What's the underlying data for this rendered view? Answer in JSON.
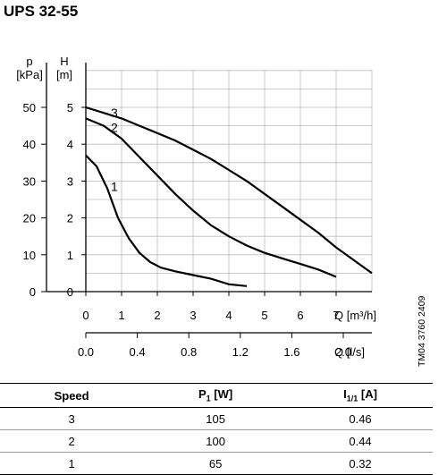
{
  "title": "UPS 32-55",
  "side_code": "TM04 3760 2409",
  "chart_data": {
    "type": "line",
    "y_axes": [
      {
        "name": "p",
        "unit": "[kPa]",
        "ticks": [
          0,
          10,
          20,
          30,
          40,
          50
        ],
        "range": [
          0,
          50
        ]
      },
      {
        "name": "H",
        "unit": "[m]",
        "ticks": [
          0,
          1,
          2,
          3,
          4,
          5
        ],
        "range": [
          0,
          5
        ]
      }
    ],
    "x_axes": [
      {
        "name": "Q",
        "unit": "[m³/h]",
        "ticks": [
          "0",
          "1",
          "2",
          "3",
          "4",
          "5",
          "6",
          "7"
        ],
        "range": [
          0,
          8
        ]
      },
      {
        "name": "Q",
        "unit": "[l/s]",
        "ticks": [
          "0.0",
          "0.4",
          "0.8",
          "1.2",
          "1.6",
          "2.0"
        ],
        "tick_values": [
          0,
          0.4,
          0.8,
          1.2,
          1.6,
          2.0
        ]
      }
    ],
    "grid": true,
    "series": [
      {
        "name": "3",
        "x": [
          0,
          0.5,
          1,
          1.5,
          2,
          2.5,
          3,
          3.5,
          4,
          4.5,
          5,
          5.5,
          6,
          6.5,
          7,
          7.5,
          8
        ],
        "y": [
          5.0,
          4.85,
          4.7,
          4.5,
          4.3,
          4.1,
          3.85,
          3.6,
          3.3,
          3.0,
          2.65,
          2.3,
          1.95,
          1.6,
          1.2,
          0.85,
          0.5
        ]
      },
      {
        "name": "2",
        "x": [
          0,
          0.5,
          1,
          1.5,
          2,
          2.5,
          3,
          3.5,
          4,
          4.5,
          5,
          5.5,
          6,
          6.5,
          7
        ],
        "y": [
          4.7,
          4.5,
          4.15,
          3.65,
          3.15,
          2.65,
          2.2,
          1.8,
          1.5,
          1.25,
          1.05,
          0.9,
          0.75,
          0.6,
          0.4
        ]
      },
      {
        "name": "1",
        "x": [
          0,
          0.3,
          0.6,
          0.9,
          1.2,
          1.5,
          1.8,
          2.1,
          2.5,
          3,
          3.5,
          4,
          4.5
        ],
        "y": [
          3.7,
          3.4,
          2.8,
          2.0,
          1.45,
          1.05,
          0.8,
          0.65,
          0.55,
          0.45,
          0.35,
          0.2,
          0.15
        ]
      }
    ]
  },
  "table": {
    "headers": [
      "Speed",
      "P1 [W]",
      "I1/1 [A]"
    ],
    "rows": [
      [
        "3",
        "105",
        "0.46"
      ],
      [
        "2",
        "100",
        "0.44"
      ],
      [
        "1",
        "65",
        "0.32"
      ]
    ]
  }
}
